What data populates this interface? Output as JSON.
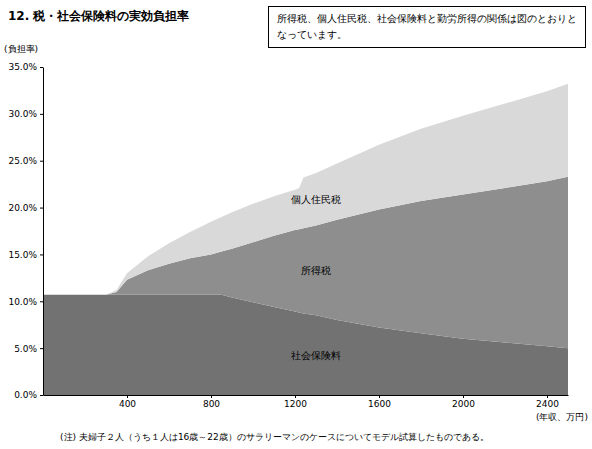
{
  "chart_data": {
    "type": "area",
    "title": "12. 税・社会保険料の実効負担率",
    "annotation": "所得税、個人住民税、社会保険料と勤労所得の関係は図のとおりとなっています。",
    "y_label": "(負担率)",
    "x_label": "(年収、万円)",
    "note": "(注) 夫婦子２人（うち１人は16歳～22歳）のサラリーマンのケースについてモデル試算したものである。",
    "stacked": true,
    "grid": false,
    "x": [
      0,
      300,
      350,
      400,
      500,
      600,
      700,
      800,
      850,
      900,
      1000,
      1100,
      1200,
      1220,
      1240,
      1300,
      1400,
      1600,
      1800,
      2000,
      2200,
      2400,
      2500
    ],
    "series": [
      {
        "name": "社会保険料",
        "color": "#727272",
        "values": [
          10.7,
          10.7,
          10.7,
          10.7,
          10.7,
          10.7,
          10.7,
          10.7,
          10.7,
          10.4,
          9.9,
          9.4,
          8.9,
          8.8,
          8.7,
          8.5,
          8.0,
          7.2,
          6.6,
          6.0,
          5.6,
          5.2,
          5.0
        ]
      },
      {
        "name": "所得税",
        "color": "#8e8e8e",
        "values": [
          0,
          0,
          0.3,
          1.6,
          2.6,
          3.3,
          3.9,
          4.3,
          4.6,
          5.2,
          6.4,
          7.6,
          8.7,
          8.9,
          9.1,
          9.6,
          10.7,
          12.6,
          14.1,
          15.4,
          16.5,
          17.6,
          18.3
        ]
      },
      {
        "name": "個人住民税",
        "color": "#d9d9d9",
        "values": [
          0,
          0,
          0.2,
          0.7,
          1.5,
          2.2,
          2.8,
          3.5,
          3.7,
          3.9,
          4.1,
          4.2,
          4.3,
          4.4,
          5.4,
          5.6,
          6.0,
          6.9,
          7.7,
          8.4,
          9.0,
          9.6,
          9.9
        ]
      }
    ],
    "xlim": [
      0,
      2500
    ],
    "ylim": [
      0,
      35
    ],
    "xticks": [
      400,
      800,
      1200,
      1600,
      2000,
      2400
    ],
    "yticks": [
      {
        "value": 0,
        "label": "0.0%"
      },
      {
        "value": 5,
        "label": "5.0%"
      },
      {
        "value": 10,
        "label": "10.0%"
      },
      {
        "value": 15,
        "label": "15.0%"
      },
      {
        "value": 20,
        "label": "20.0%"
      },
      {
        "value": 25,
        "label": "25.0%"
      },
      {
        "value": 30,
        "label": "30.0%"
      },
      {
        "value": 35,
        "label": "35.0%"
      }
    ]
  }
}
